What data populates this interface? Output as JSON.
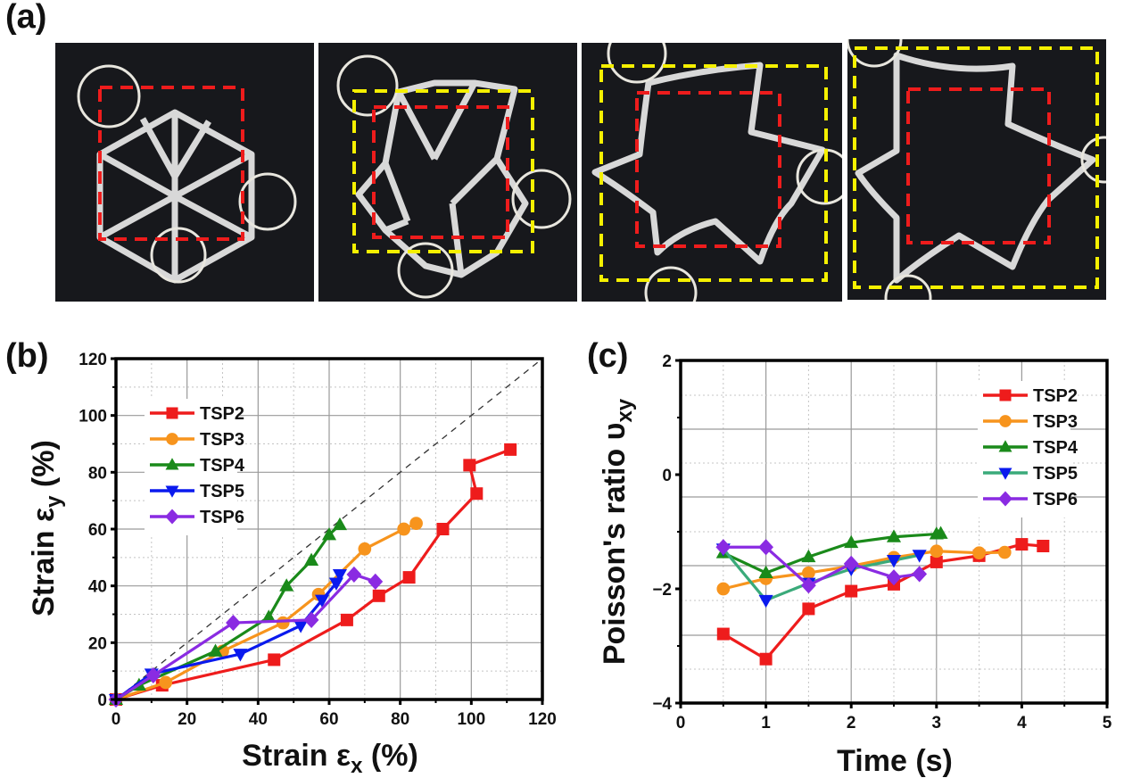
{
  "figure": {
    "panel_labels": [
      "(a)",
      "(b)",
      "(c)"
    ],
    "photos": [
      {
        "name": "stage-1",
        "structure": "compact hexagon of six triangles",
        "boxes": [
          "red-dashed"
        ]
      },
      {
        "name": "stage-2",
        "structure": "partially expanded star",
        "boxes": [
          "yellow-dashed",
          "red-dashed"
        ]
      },
      {
        "name": "stage-3",
        "structure": "expanded star",
        "boxes": [
          "yellow-dashed",
          "red-dashed"
        ]
      },
      {
        "name": "stage-4",
        "structure": "fully expanded star",
        "boxes": [
          "yellow-dashed",
          "red-dashed"
        ]
      }
    ],
    "box_colors": {
      "red": "#ee1c1c",
      "yellow": "#f5f000"
    }
  },
  "chart_data": [
    {
      "type": "line",
      "panel": "(b)",
      "title": "",
      "xlabel": "Strain εx (%)",
      "xlabel_main": "Strain ε",
      "xlabel_sub": "x",
      "xlabel_tail": " (%)",
      "ylabel": "Strain εy (%)",
      "ylabel_main": "Strain ε",
      "ylabel_sub": "y",
      "ylabel_tail": " (%)",
      "xlim": [
        0,
        120
      ],
      "ylim": [
        0,
        120
      ],
      "xticks": [
        0,
        20,
        40,
        60,
        80,
        100,
        120
      ],
      "yticks": [
        0,
        20,
        40,
        60,
        80,
        100,
        120
      ],
      "grid": true,
      "legend": "top-left",
      "reference_line": {
        "style": "dashed",
        "color": "#333333",
        "from": [
          0,
          0
        ],
        "to": [
          120,
          120
        ]
      },
      "series": [
        {
          "name": "TSP2",
          "color": "#ee1c1c",
          "marker": "square",
          "x": [
            0,
            13,
            44.5,
            65,
            74,
            82.5,
            92,
            101.5,
            99.5,
            111
          ],
          "y": [
            0,
            5,
            14,
            28,
            36.5,
            43,
            60,
            72.5,
            82.5,
            88
          ]
        },
        {
          "name": "TSP3",
          "color": "#f7941d",
          "marker": "circle",
          "x": [
            0,
            14,
            30,
            47,
            57,
            70,
            81,
            84.5
          ],
          "y": [
            0,
            6,
            17,
            27,
            37,
            53,
            60,
            62
          ]
        },
        {
          "name": "TSP4",
          "color": "#1a8a1a",
          "marker": "triangle-up",
          "x": [
            0,
            6.5,
            28,
            43,
            48,
            55,
            60,
            63
          ],
          "y": [
            0,
            5,
            17,
            29,
            40,
            49,
            58,
            61.5
          ]
        },
        {
          "name": "TSP5",
          "color": "#0a1aee",
          "marker": "triangle-down",
          "x": [
            0,
            10,
            35,
            52,
            58,
            62,
            63
          ],
          "y": [
            0,
            9,
            16,
            26,
            35,
            41,
            44
          ]
        },
        {
          "name": "TSP6",
          "color": "#8a2be2",
          "marker": "diamond",
          "x": [
            0,
            10.5,
            33,
            55,
            67,
            73
          ],
          "y": [
            0,
            8.5,
            27,
            28,
            44,
            41.5
          ]
        }
      ]
    },
    {
      "type": "line",
      "panel": "(c)",
      "title": "",
      "xlabel": "Time (s)",
      "ylabel": "Poisson's ratio υxy",
      "ylabel_main": "Poisson's ratio υ",
      "ylabel_sub": "xy",
      "xlim": [
        0,
        5
      ],
      "ylim": [
        -4,
        2
      ],
      "xticks": [
        0,
        1,
        2,
        3,
        4,
        5
      ],
      "yticks": [
        -4,
        -2,
        0,
        2
      ],
      "ytick_labels": [
        "−4",
        "−2",
        "0",
        "2"
      ],
      "grid": true,
      "legend": "top-right",
      "series": [
        {
          "name": "TSP2",
          "color": "#ee1c1c",
          "marker": "square",
          "x": [
            0.5,
            1,
            1.5,
            2,
            2.5,
            3,
            3.5,
            4,
            4.25
          ],
          "y": [
            -2.79,
            -3.23,
            -2.35,
            -2.04,
            -1.92,
            -1.53,
            -1.42,
            -1.22,
            -1.25
          ]
        },
        {
          "name": "TSP3",
          "color": "#f7941d",
          "marker": "circle",
          "x": [
            0.5,
            1,
            1.5,
            2,
            2.5,
            3,
            3.5,
            3.8
          ],
          "y": [
            -2.0,
            -1.82,
            -1.72,
            -1.6,
            -1.45,
            -1.34,
            -1.37,
            -1.36
          ]
        },
        {
          "name": "TSP4",
          "color": "#1a8a1a",
          "marker": "triangle-up",
          "x": [
            0.5,
            1,
            1.5,
            2,
            2.5,
            3,
            3.05
          ],
          "y": [
            -1.37,
            -1.72,
            -1.44,
            -1.19,
            -1.09,
            -1.04,
            -1.03
          ]
        },
        {
          "name": "TSP5",
          "color": "#3aaa7a",
          "marker_color": "#0a1aee",
          "marker": "triangle-down",
          "x": [
            0.5,
            1,
            1.5,
            2,
            2.5,
            2.8
          ],
          "y": [
            -1.3,
            -2.2,
            -1.9,
            -1.65,
            -1.5,
            -1.41
          ]
        },
        {
          "name": "TSP6",
          "color": "#8a2be2",
          "marker": "diamond",
          "x": [
            0.5,
            1,
            1.5,
            2,
            2.5,
            2.8
          ],
          "y": [
            -1.27,
            -1.27,
            -1.94,
            -1.56,
            -1.8,
            -1.74
          ]
        }
      ]
    }
  ]
}
